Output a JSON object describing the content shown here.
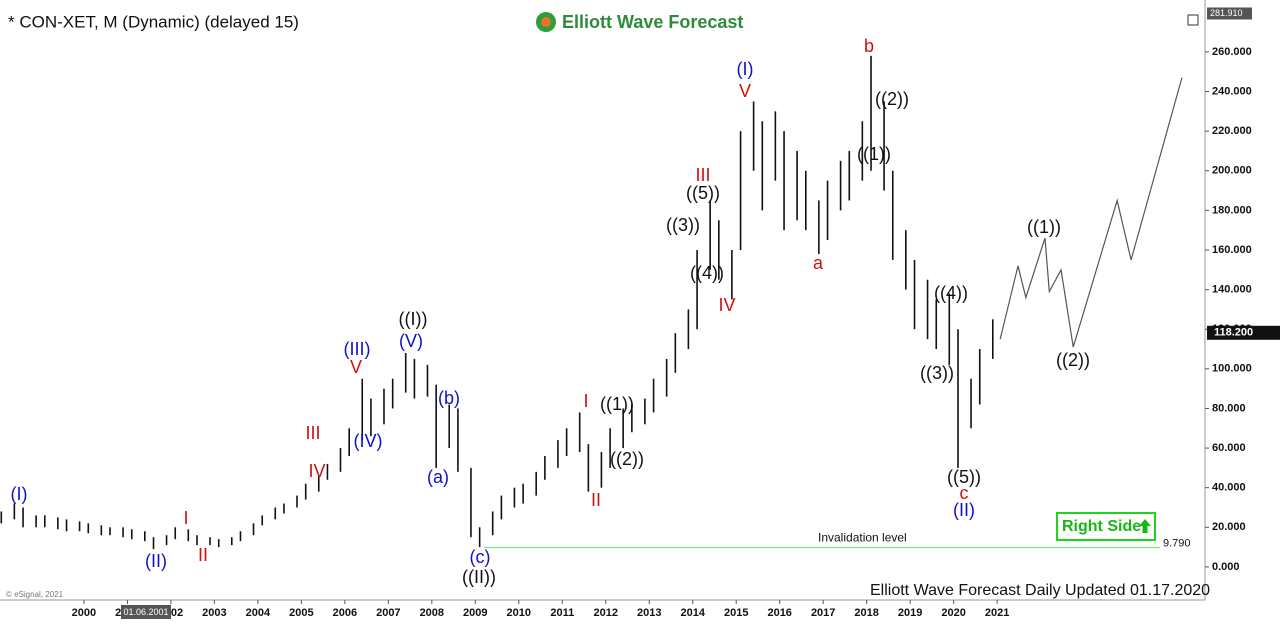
{
  "header": {
    "symbol": "* CON-XET, M (Dynamic) (delayed 15)",
    "logo": "Elliott Wave Forecast"
  },
  "chart_data": {
    "type": "range-bar",
    "xlim": [
      1998.07,
      2025.78
    ],
    "ylim": [
      -16.7,
      286.2
    ],
    "xticks": [
      2000,
      2001,
      2002,
      2003,
      2004,
      2005,
      2006,
      2007,
      2008,
      2009,
      2010,
      2011,
      2012,
      2013,
      2014,
      2015,
      2016,
      2017,
      2018,
      2019,
      2020,
      2021
    ],
    "yticks": [
      {
        "value": 0,
        "label": "0.000"
      },
      {
        "value": 20,
        "label": "20.000"
      },
      {
        "value": 40,
        "label": "40.000"
      },
      {
        "value": 60,
        "label": "60.000"
      },
      {
        "value": 80,
        "label": "80.000"
      },
      {
        "value": 100,
        "label": "100.000"
      },
      {
        "value": 120,
        "label": "120.000"
      },
      {
        "value": 140,
        "label": "140.000"
      },
      {
        "value": 160,
        "label": "160.000"
      },
      {
        "value": 180,
        "label": "180.000"
      },
      {
        "value": 200,
        "label": "200.000"
      },
      {
        "value": 220,
        "label": "220.000"
      },
      {
        "value": 240,
        "label": "240.000"
      },
      {
        "value": 260,
        "label": "260.000"
      }
    ],
    "series": [
      {
        "color": "#111111",
        "x": [
          1998.1,
          1998.4,
          1998.6,
          1998.9,
          1999.1,
          1999.4,
          1999.6,
          1999.9,
          2000.1,
          2000.4,
          2000.6,
          2000.9,
          2001.1,
          2001.4,
          2001.6,
          2001.9,
          2002.1,
          2002.4,
          2002.6,
          2002.9,
          2003.1,
          2003.4,
          2003.6,
          2003.9,
          2004.1,
          2004.4,
          2004.6,
          2004.9,
          2005.1,
          2005.4,
          2005.6,
          2005.9,
          2006.1,
          2006.4,
          2006.6,
          2006.9,
          2007.1,
          2007.4,
          2007.6,
          2007.9,
          2008.1,
          2008.4,
          2008.6,
          2008.9,
          2009.1,
          2009.4,
          2009.6,
          2009.9,
          2010.1,
          2010.4,
          2010.6,
          2010.9,
          2011.1,
          2011.4,
          2011.6,
          2011.9,
          2012.1,
          2012.4,
          2012.6,
          2012.9,
          2013.1,
          2013.4,
          2013.6,
          2013.9,
          2014.1,
          2014.4,
          2014.6,
          2014.9,
          2015.1,
          2015.4,
          2015.6,
          2015.9,
          2016.1,
          2016.4,
          2016.6,
          2016.9,
          2017.1,
          2017.4,
          2017.6,
          2017.9,
          2018.1,
          2018.4,
          2018.6,
          2018.9,
          2019.1,
          2019.4,
          2019.6,
          2019.9,
          2020.1,
          2020.4,
          2020.6,
          2020.9
        ],
        "high": [
          28,
          32,
          30,
          26,
          26,
          25,
          24,
          23,
          22,
          21,
          20,
          20,
          19,
          18,
          15,
          16,
          20,
          19,
          16,
          15,
          14,
          15,
          18,
          22,
          26,
          30,
          32,
          36,
          42,
          46,
          52,
          60,
          70,
          95,
          85,
          90,
          95,
          108,
          105,
          102,
          92,
          82,
          80,
          50,
          20,
          28,
          36,
          40,
          42,
          48,
          56,
          64,
          70,
          78,
          62,
          58,
          70,
          80,
          82,
          85,
          95,
          105,
          118,
          130,
          160,
          185,
          175,
          160,
          220,
          235,
          225,
          230,
          220,
          210,
          200,
          185,
          195,
          205,
          210,
          225,
          258,
          235,
          200,
          170,
          155,
          145,
          135,
          138,
          120,
          95,
          110,
          125
        ],
        "low": [
          22,
          24,
          20,
          20,
          20,
          19,
          18,
          18,
          17,
          16,
          16,
          15,
          14,
          13,
          9,
          11,
          14,
          13,
          11,
          11,
          10,
          11,
          13,
          16,
          21,
          24,
          27,
          30,
          34,
          38,
          44,
          48,
          56,
          64,
          66,
          72,
          80,
          88,
          85,
          86,
          50,
          60,
          48,
          15,
          10,
          16,
          24,
          30,
          32,
          36,
          44,
          50,
          56,
          58,
          38,
          40,
          50,
          60,
          68,
          72,
          78,
          86,
          98,
          110,
          120,
          150,
          145,
          135,
          160,
          200,
          180,
          195,
          170,
          175,
          170,
          158,
          165,
          180,
          185,
          195,
          200,
          190,
          155,
          140,
          120,
          115,
          110,
          102,
          50,
          70,
          82,
          105
        ]
      }
    ],
    "projection": {
      "color": "#555555",
      "x": [
        2021.07,
        2021.48,
        2021.66,
        2022.1,
        2022.2,
        2022.47,
        2022.75,
        2023.76,
        2024.08,
        2025.25
      ],
      "values": [
        115,
        152,
        136,
        166,
        139,
        150,
        111,
        185,
        155,
        247
      ]
    },
    "current": {
      "value": 118.2,
      "label": "118.200"
    },
    "top_price": {
      "value": 281.91,
      "label": "281.910"
    },
    "invalidation": {
      "text": "Invalidation level",
      "value": 9.79,
      "label": "9.790",
      "color": "#7ee07e"
    },
    "annotations": [
      {
        "text": "(I)",
        "color": "#1010c8"
      },
      {
        "text": "(II)",
        "color": "#1010c8"
      },
      {
        "text": "I",
        "color": "#d01010"
      },
      {
        "text": "II",
        "color": "#d01010"
      },
      {
        "text": "III",
        "color": "#d01010"
      },
      {
        "text": "IV",
        "color": "#d01010"
      },
      {
        "text": "(III)",
        "color": "#1010c8"
      },
      {
        "text": "V",
        "color": "#d01010"
      },
      {
        "text": "(IV)",
        "color": "#1010c8"
      },
      {
        "text": "((I))",
        "color": "#111111"
      },
      {
        "text": "(V)",
        "color": "#1010c8"
      },
      {
        "text": "(b)",
        "color": "#1010c8"
      },
      {
        "text": "(a)",
        "color": "#1010c8"
      },
      {
        "text": "(c)",
        "color": "#1010c8"
      },
      {
        "text": "((II))",
        "color": "#111111"
      },
      {
        "text": "I",
        "color": "#d01010"
      },
      {
        "text": "II",
        "color": "#d01010"
      },
      {
        "text": "((1))",
        "color": "#111111"
      },
      {
        "text": "((2))",
        "color": "#111111"
      },
      {
        "text": "((3))",
        "color": "#111111"
      },
      {
        "text": "((5))",
        "color": "#111111"
      },
      {
        "text": "III",
        "color": "#d01010"
      },
      {
        "text": "((4))",
        "color": "#111111"
      },
      {
        "text": "IV",
        "color": "#d01010"
      },
      {
        "text": "(I)",
        "color": "#1010c8"
      },
      {
        "text": "V",
        "color": "#d01010"
      },
      {
        "text": "a",
        "color": "#d01010"
      },
      {
        "text": "b",
        "color": "#d01010"
      },
      {
        "text": "((2))",
        "color": "#111111"
      },
      {
        "text": "((1))",
        "color": "#111111"
      },
      {
        "text": "((4))",
        "color": "#111111"
      },
      {
        "text": "((3))",
        "color": "#111111"
      },
      {
        "text": "((5))",
        "color": "#111111"
      },
      {
        "text": "c",
        "color": "#d01010"
      },
      {
        "text": "(II)",
        "color": "#1010c8"
      },
      {
        "text": "((1))",
        "color": "#111111"
      },
      {
        "text": "((2))",
        "color": "#111111"
      }
    ],
    "footer": "Elliott Wave Forecast Daily Updated 01.17.2020",
    "copyright": "© eSignal, 2021",
    "cursor_date": "01.06.2001",
    "button": "Right Side"
  }
}
